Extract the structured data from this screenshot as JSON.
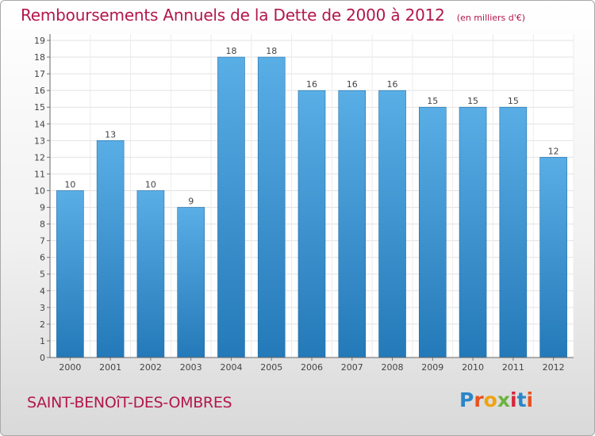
{
  "colors": {
    "accent": "#b3174a",
    "bar_light": "#5aaee6",
    "bar_dark": "#2479b8"
  },
  "header": {
    "title": "Remboursements Annuels de la Dette de 2000 à 2012",
    "unit": "(en milliers d'€)"
  },
  "footer": {
    "city": "SAINT-BENOîT-DES-OMBRES",
    "logo": "Proxiti"
  },
  "chart_data": {
    "type": "bar",
    "title": "Remboursements Annuels de la Dette de 2000 à 2012",
    "subtitle": "(en milliers d'€)",
    "xlabel": "",
    "ylabel": "",
    "categories": [
      "2000",
      "2001",
      "2002",
      "2003",
      "2004",
      "2005",
      "2006",
      "2007",
      "2008",
      "2009",
      "2010",
      "2011",
      "2012"
    ],
    "values": [
      10,
      13,
      10,
      9,
      18,
      18,
      16,
      16,
      16,
      15,
      15,
      15,
      12
    ],
    "ylim": [
      0,
      19
    ],
    "yticks": [
      0,
      1,
      2,
      3,
      4,
      5,
      6,
      7,
      8,
      9,
      10,
      11,
      12,
      13,
      14,
      15,
      16,
      17,
      18,
      19
    ],
    "grid": true,
    "legend": "none"
  }
}
